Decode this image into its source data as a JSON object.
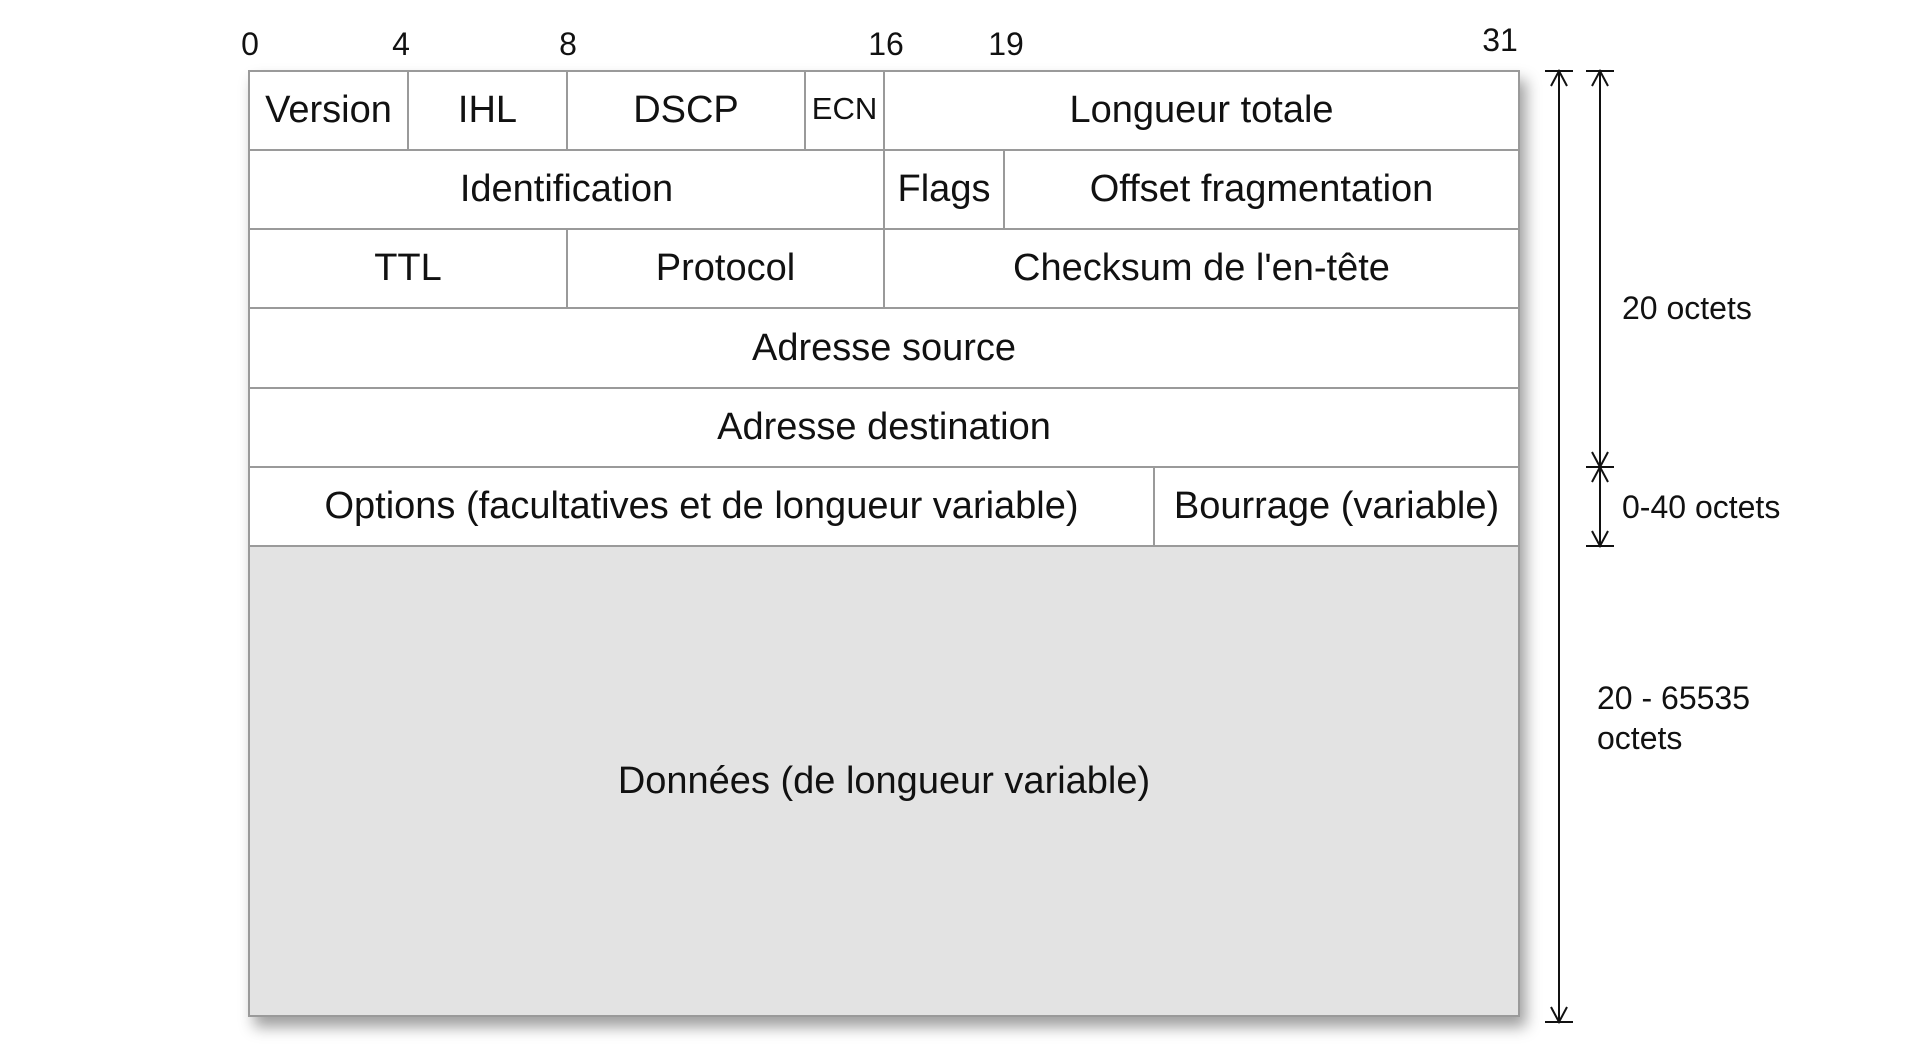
{
  "bit_positions": [
    "0",
    "4",
    "8",
    "16",
    "19",
    "31"
  ],
  "fields": {
    "version": "Version",
    "ihl": "IHL",
    "dscp": "DSCP",
    "ecn": "ECN",
    "total_length": "Longueur totale",
    "identification": "Identification",
    "flags": "Flags",
    "fragment_offset": "Offset fragmentation",
    "ttl": "TTL",
    "protocol": "Protocol",
    "header_checksum": "Checksum de l'en-tête",
    "source_address": "Adresse source",
    "destination_address": "Adresse destination",
    "options": "Options (facultatives et de longueur variable)",
    "padding": "Bourrage (variable)",
    "data": "Données (de longueur variable)"
  },
  "size_labels": {
    "header": "20 octets",
    "options": "0-40 octets",
    "total_line1": "20 - 65535",
    "total_line2": "octets"
  },
  "colors": {
    "data_fill": "#e3e3e3",
    "grid_line": "#9a9a9a",
    "arrow_line": "#111111"
  }
}
